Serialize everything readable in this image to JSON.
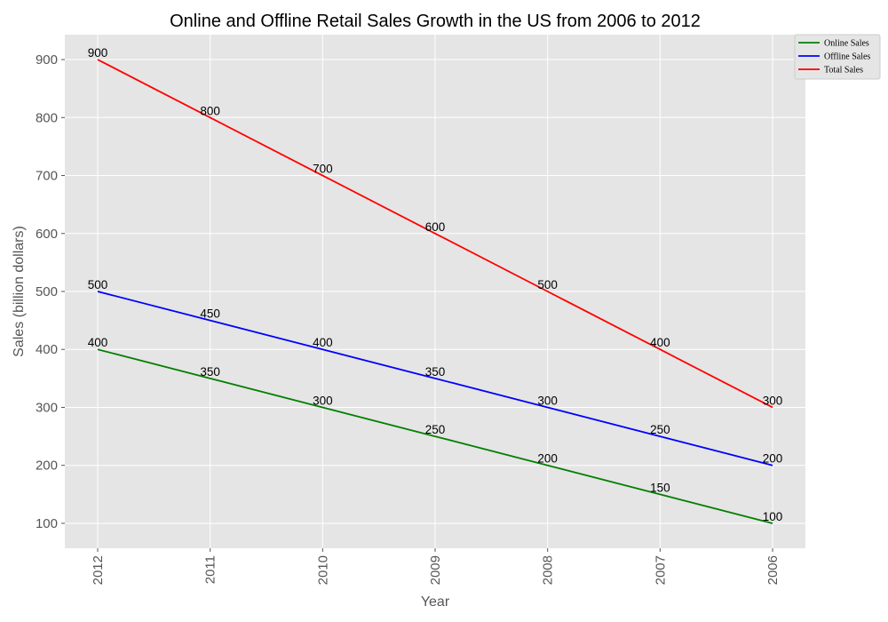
{
  "chart_data": {
    "type": "line",
    "title": "Online and Offline Retail Sales Growth in the US from 2006 to 2012",
    "xlabel": "Year",
    "ylabel": "Sales (billion dollars)",
    "categories": [
      "2012",
      "2011",
      "2010",
      "2009",
      "2008",
      "2007",
      "2006"
    ],
    "yticks": [
      100,
      200,
      300,
      400,
      500,
      600,
      700,
      800,
      900
    ],
    "ylim": [
      57,
      943
    ],
    "grid": true,
    "legend_position": "top-right",
    "background_color": "#e5e5e5",
    "series": [
      {
        "name": "Online Sales",
        "color": "#008000",
        "values": [
          400,
          350,
          300,
          250,
          200,
          150,
          100
        ]
      },
      {
        "name": "Offline Sales",
        "color": "#0000ff",
        "values": [
          500,
          450,
          400,
          350,
          300,
          250,
          200
        ]
      },
      {
        "name": "Total Sales",
        "color": "#ff0000",
        "values": [
          900,
          800,
          700,
          600,
          500,
          400,
          300
        ]
      }
    ]
  }
}
